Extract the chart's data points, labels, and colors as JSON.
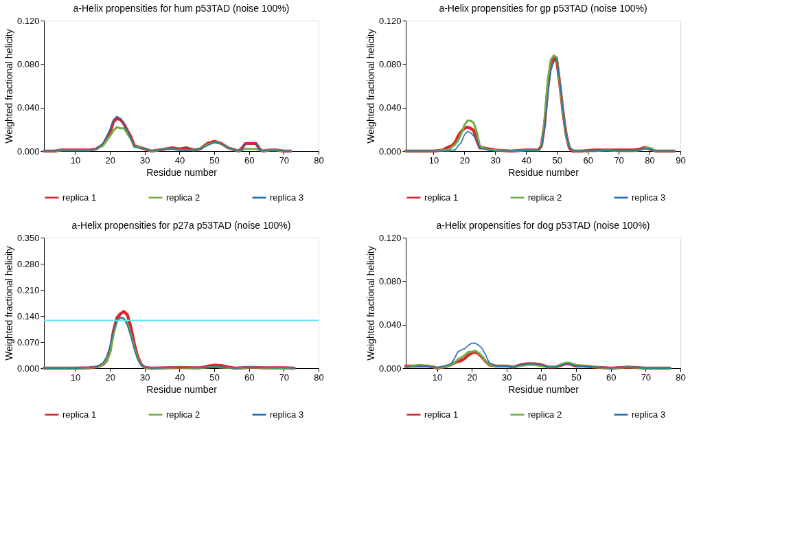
{
  "chart_data": [
    {
      "type": "line",
      "title": "a-Helix propensities for hum p53TAD  (noise 100%)",
      "xlabel": "Residue number",
      "ylabel": "Weighted fractional helicity",
      "legend": "bottom",
      "grid": false,
      "marker": "none",
      "line_style": "solid",
      "x": [
        1,
        4,
        6,
        8,
        10,
        12,
        14,
        16,
        18,
        20,
        21,
        22,
        23,
        24,
        26,
        27,
        28,
        30,
        32,
        34,
        36,
        38,
        40,
        42,
        44,
        46,
        48,
        50,
        52,
        54,
        56,
        57,
        58,
        59,
        61,
        62,
        63,
        64,
        66,
        68,
        70,
        72
      ],
      "xlim": [
        1,
        80
      ],
      "xticks": [
        10,
        20,
        30,
        40,
        50,
        60,
        70,
        80
      ],
      "ylim": [
        0,
        0.12
      ],
      "yticks": [
        {
          "value": 0,
          "label": "0.000"
        },
        {
          "value": 0.04,
          "label": "0.040"
        },
        {
          "value": 0.08,
          "label": "0.080"
        },
        {
          "value": 0.12,
          "label": "0.120"
        }
      ],
      "series": [
        {
          "name": "replica 1",
          "color": "#d7262b",
          "values": [
            0,
            0,
            0.001,
            0.001,
            0.001,
            0.001,
            0.001,
            0.002,
            0.006,
            0.017,
            0.027,
            0.03,
            0.029,
            0.025,
            0.013,
            0.005,
            0.004,
            0.002,
            0,
            0.001,
            0.002,
            0.003,
            0.002,
            0.003,
            0.001,
            0.002,
            0.007,
            0.009,
            0.007,
            0.003,
            0.001,
            0,
            0.003,
            0.007,
            0.007,
            0.007,
            0.002,
            0,
            0.001,
            0.001,
            0,
            0
          ]
        },
        {
          "name": "replica 2",
          "color": "#70ad47",
          "values": [
            0,
            0,
            0.001,
            0.001,
            0.001,
            0.001,
            0.001,
            0.002,
            0.005,
            0.014,
            0.019,
            0.022,
            0.021,
            0.021,
            0.011,
            0.004,
            0.004,
            0.002,
            0,
            0.001,
            0.002,
            0.002,
            0.001,
            0.001,
            0.001,
            0.002,
            0.006,
            0.008,
            0.007,
            0.003,
            0.001,
            0,
            0.001,
            0.002,
            0.002,
            0.002,
            0.001,
            0,
            0.001,
            0.001,
            0,
            0
          ]
        },
        {
          "name": "replica 3",
          "color": "#1f6eb5",
          "values": [
            0,
            0,
            0.001,
            0.001,
            0.001,
            0.001,
            0.001,
            0.002,
            0.007,
            0.02,
            0.029,
            0.032,
            0.03,
            0.026,
            0.012,
            0.004,
            0.003,
            0.002,
            0,
            0.001,
            0.002,
            0.002,
            0.001,
            0.001,
            0.001,
            0.002,
            0.005,
            0.008,
            0.007,
            0.003,
            0.001,
            0,
            0.001,
            0.007,
            0.007,
            0.007,
            0.001,
            0,
            0.001,
            0.001,
            0,
            0
          ]
        }
      ]
    },
    {
      "type": "line",
      "title": "a-Helix propensities for gp p53TAD  (noise 100%)",
      "xlabel": "Residue number",
      "ylabel": "Weighted fractional helicity",
      "legend": "bottom",
      "grid": false,
      "marker": "none",
      "line_style": "solid",
      "x": [
        1,
        5,
        10,
        13,
        15,
        16,
        17,
        18,
        19,
        20,
        21,
        22,
        23,
        24,
        25,
        26,
        28,
        30,
        35,
        40,
        44,
        45,
        46,
        47,
        48,
        49,
        50,
        51,
        52,
        53,
        54,
        55,
        56,
        58,
        62,
        66,
        70,
        75,
        77,
        78,
        79,
        80,
        81,
        82,
        85,
        88
      ],
      "xlim": [
        1,
        90
      ],
      "xticks": [
        10,
        20,
        30,
        40,
        50,
        60,
        70,
        80,
        90
      ],
      "ylim": [
        0,
        0.12
      ],
      "yticks": [
        {
          "value": 0,
          "label": "0.000"
        },
        {
          "value": 0.04,
          "label": "0.040"
        },
        {
          "value": 0.08,
          "label": "0.080"
        },
        {
          "value": 0.12,
          "label": "0.120"
        }
      ],
      "series": [
        {
          "name": "replica 1",
          "color": "#d7262b",
          "values": [
            0,
            0,
            0,
            0.001,
            0.004,
            0.005,
            0.008,
            0.014,
            0.018,
            0.021,
            0.022,
            0.021,
            0.019,
            0.01,
            0.003,
            0.003,
            0.002,
            0.001,
            0,
            0.001,
            0.001,
            0.005,
            0.025,
            0.058,
            0.08,
            0.087,
            0.082,
            0.06,
            0.035,
            0.015,
            0.003,
            0,
            0,
            0,
            0.001,
            0.001,
            0.001,
            0.001,
            0.002,
            0.003,
            0.003,
            0.002,
            0.001,
            0,
            0,
            0
          ]
        },
        {
          "name": "replica 2",
          "color": "#70ad47",
          "values": [
            0,
            0,
            0,
            0.001,
            0.001,
            0.004,
            0.006,
            0.01,
            0.016,
            0.024,
            0.028,
            0.028,
            0.026,
            0.018,
            0.005,
            0.003,
            0.001,
            0.001,
            0,
            0.001,
            0.001,
            0.004,
            0.028,
            0.065,
            0.084,
            0.088,
            0.086,
            0.06,
            0.035,
            0.015,
            0.004,
            0.001,
            0,
            0,
            0,
            0.001,
            0,
            0,
            0.001,
            0.002,
            0.003,
            0.003,
            0.002,
            0,
            0,
            0
          ]
        },
        {
          "name": "replica 3",
          "color": "#1f6eb5",
          "values": [
            0,
            0,
            0,
            0,
            0,
            0.001,
            0.001,
            0.005,
            0.008,
            0.015,
            0.018,
            0.017,
            0.014,
            0.01,
            0.003,
            0.002,
            0.001,
            0,
            0,
            0.001,
            0.001,
            0.004,
            0.022,
            0.05,
            0.074,
            0.082,
            0.085,
            0.062,
            0.035,
            0.015,
            0.004,
            0.001,
            0,
            0,
            0,
            0.001,
            0,
            0,
            0.001,
            0.002,
            0.002,
            0.002,
            0.001,
            0,
            0,
            0
          ]
        }
      ]
    },
    {
      "type": "line",
      "title": "a-Helix propensities for p27a p53TAD  (noise 100%)",
      "xlabel": "Residue number",
      "ylabel": "Weighted fractional helicity",
      "legend": "bottom",
      "grid": false,
      "marker": "none",
      "line_style": "solid",
      "x": [
        1,
        5,
        10,
        14,
        16,
        17,
        18,
        19,
        20,
        21,
        22,
        23,
        24,
        25,
        26,
        27,
        28,
        29,
        30,
        32,
        36,
        40,
        44,
        46,
        48,
        50,
        52,
        54,
        56,
        58,
        60,
        62,
        64,
        66,
        70,
        73
      ],
      "xlim": [
        1,
        80
      ],
      "xticks": [
        10,
        20,
        30,
        40,
        50,
        60,
        70,
        80
      ],
      "ylim": [
        0,
        0.35
      ],
      "yticks": [
        {
          "value": 0,
          "label": "0.000"
        },
        {
          "value": 0.07,
          "label": "0.070"
        },
        {
          "value": 0.14,
          "label": "0.140"
        },
        {
          "value": 0.21,
          "label": "0.210"
        },
        {
          "value": 0.28,
          "label": "0.280"
        },
        {
          "value": 0.35,
          "label": "0.350"
        }
      ],
      "ref_lines": [
        {
          "axis": "y",
          "value": 0.128,
          "color": "#5ce8f0"
        }
      ],
      "series": [
        {
          "name": "replica 1",
          "color": "#d7262b",
          "values": [
            0,
            0,
            0,
            0.001,
            0.003,
            0.006,
            0.01,
            0.02,
            0.045,
            0.1,
            0.135,
            0.146,
            0.152,
            0.143,
            0.11,
            0.065,
            0.03,
            0.01,
            0.002,
            0,
            0.001,
            0.002,
            0.001,
            0.001,
            0.005,
            0.008,
            0.007,
            0.003,
            0,
            0.001,
            0.002,
            0.002,
            0.001,
            0.001,
            0.001,
            0
          ]
        },
        {
          "name": "replica 2",
          "color": "#70ad47",
          "values": [
            0,
            0,
            0,
            0.001,
            0.003,
            0.006,
            0.01,
            0.02,
            0.04,
            0.09,
            0.125,
            0.135,
            0.133,
            0.12,
            0.09,
            0.055,
            0.025,
            0.008,
            0.002,
            0,
            0.001,
            0.002,
            0.001,
            0.001,
            0.002,
            0.003,
            0.002,
            0.001,
            0,
            0.001,
            0.002,
            0.002,
            0.001,
            0.001,
            0.001,
            0
          ]
        },
        {
          "name": "replica 3",
          "color": "#1f6eb5",
          "values": [
            0,
            0,
            0,
            0.001,
            0.004,
            0.008,
            0.015,
            0.03,
            0.06,
            0.1,
            0.128,
            0.137,
            0.133,
            0.115,
            0.085,
            0.05,
            0.022,
            0.007,
            0.002,
            0,
            0.001,
            0.002,
            0.001,
            0.001,
            0.002,
            0.003,
            0.003,
            0.001,
            0,
            0.001,
            0.003,
            0.002,
            0.001,
            0.001,
            0.001,
            0
          ]
        }
      ]
    },
    {
      "type": "line",
      "title": "a-Helix propensities for dog p53TAD  (noise 100%)",
      "xlabel": "Residue number",
      "ylabel": "Weighted fractional helicity",
      "legend": "bottom",
      "grid": false,
      "marker": "none",
      "line_style": "solid",
      "x": [
        1,
        3,
        5,
        7,
        9,
        10,
        12,
        14,
        15,
        16,
        17,
        18,
        19,
        20,
        21,
        22,
        23,
        24,
        25,
        27,
        30,
        32,
        34,
        36,
        38,
        40,
        42,
        44,
        46,
        47,
        48,
        50,
        52,
        55,
        60,
        65,
        70,
        75,
        77
      ],
      "xlim": [
        1,
        80
      ],
      "xticks": [
        10,
        20,
        30,
        40,
        50,
        60,
        70,
        80
      ],
      "ylim": [
        0,
        0.12
      ],
      "yticks": [
        {
          "value": 0,
          "label": "0.000"
        },
        {
          "value": 0.04,
          "label": "0.040"
        },
        {
          "value": 0.08,
          "label": "0.080"
        },
        {
          "value": 0.12,
          "label": "0.120"
        }
      ],
      "series": [
        {
          "name": "replica 1",
          "color": "#d7262b",
          "values": [
            0.002,
            0.002,
            0.002,
            0.002,
            0.001,
            0,
            0.001,
            0.003,
            0.005,
            0.006,
            0.007,
            0.009,
            0.012,
            0.014,
            0.015,
            0.013,
            0.01,
            0.006,
            0.003,
            0.002,
            0.002,
            0.001,
            0.003,
            0.004,
            0.004,
            0.003,
            0.001,
            0.001,
            0.003,
            0.004,
            0.004,
            0.002,
            0.002,
            0.001,
            0,
            0.001,
            0,
            0,
            0
          ]
        },
        {
          "name": "replica 2",
          "color": "#70ad47",
          "values": [
            0.001,
            0.002,
            0.003,
            0.002,
            0.001,
            0,
            0.001,
            0.003,
            0.005,
            0.008,
            0.01,
            0.012,
            0.015,
            0.015,
            0.016,
            0.014,
            0.011,
            0.006,
            0.003,
            0.002,
            0.002,
            0.001,
            0.002,
            0.003,
            0.003,
            0.002,
            0.001,
            0.001,
            0.004,
            0.005,
            0.005,
            0.003,
            0.002,
            0.001,
            0,
            0.001,
            0,
            0,
            0
          ]
        },
        {
          "name": "replica 3",
          "color": "#1f6eb5",
          "values": [
            0.001,
            0.001,
            0.002,
            0.002,
            0.001,
            0,
            0.002,
            0.004,
            0.009,
            0.015,
            0.017,
            0.018,
            0.021,
            0.023,
            0.023,
            0.021,
            0.018,
            0.012,
            0.005,
            0.002,
            0.002,
            0.001,
            0.003,
            0.004,
            0.004,
            0.003,
            0.001,
            0.001,
            0.003,
            0.004,
            0.004,
            0.002,
            0.002,
            0.001,
            0,
            0.001,
            0,
            0,
            0
          ]
        }
      ]
    }
  ]
}
